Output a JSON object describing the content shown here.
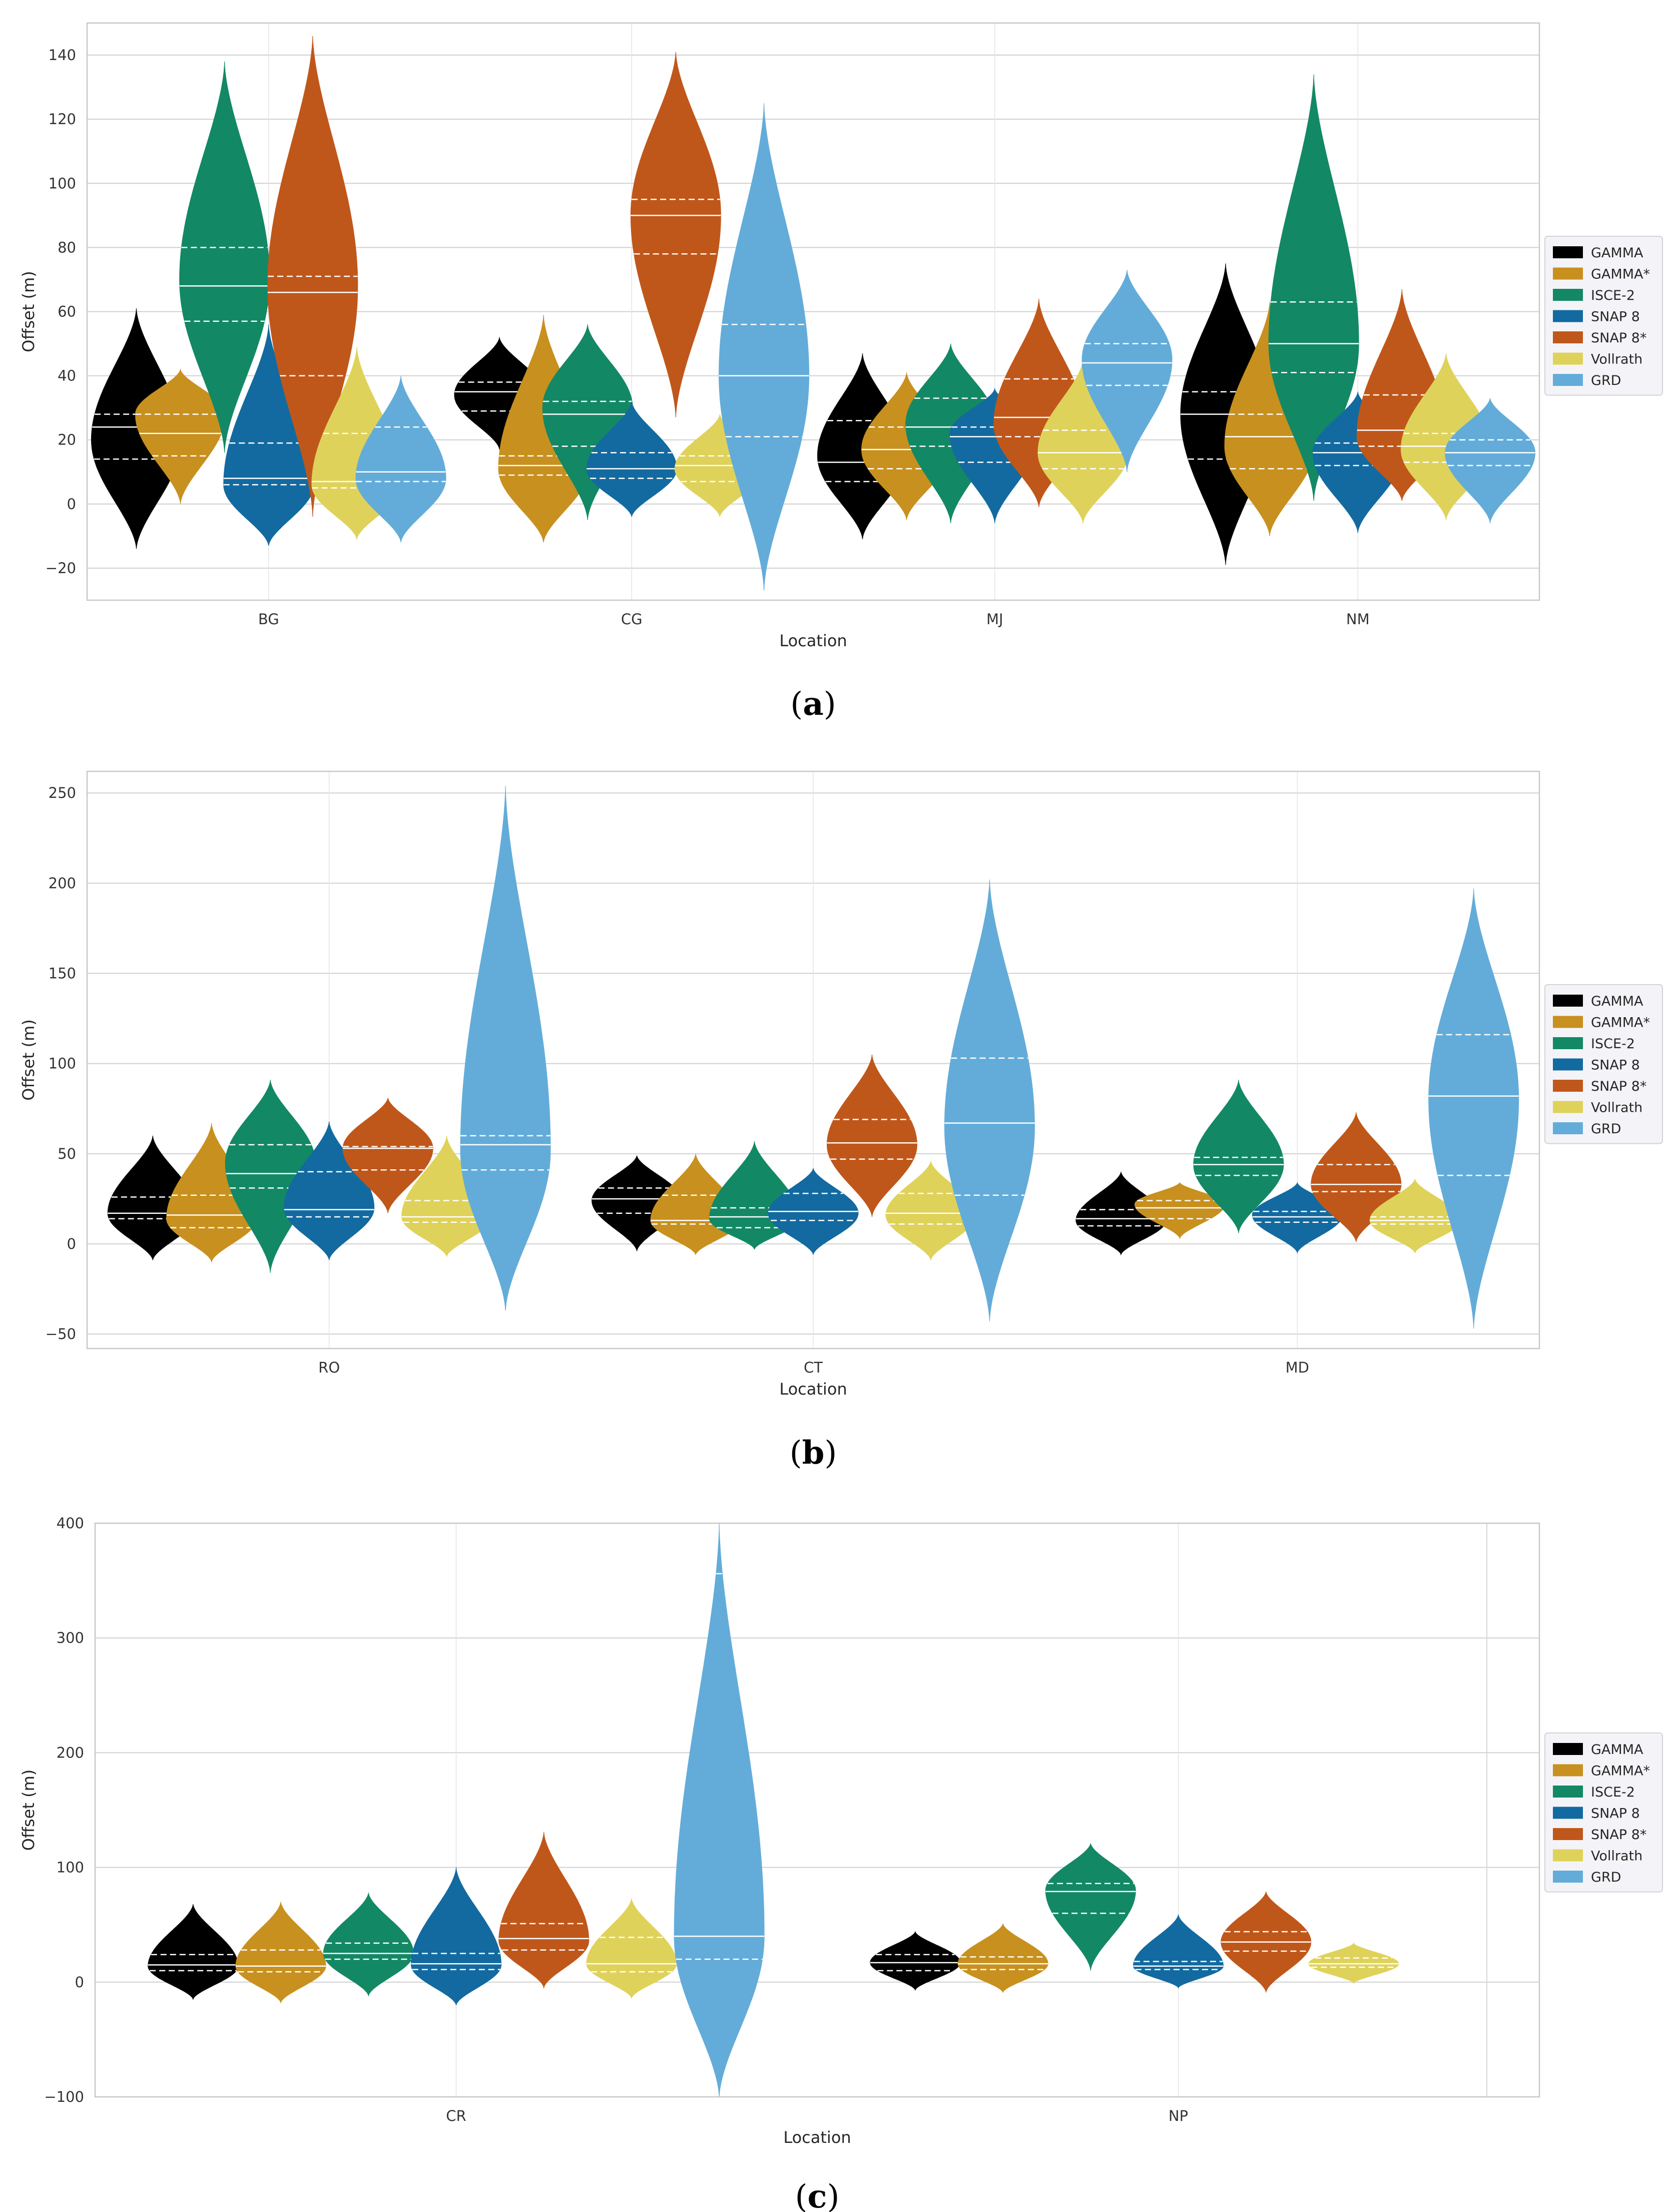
{
  "colors": {
    "GAMMA": "#000000",
    "GAMMA*": "#c8901e",
    "ISCE-2": "#138864",
    "SNAP 8": "#136aa0",
    "SNAP 8*": "#c0571a",
    "Vollrath": "#dfd25a",
    "GRD": "#63acd9"
  },
  "legend": {
    "placement": "right-center",
    "entries": [
      "GAMMA",
      "GAMMA*",
      "ISCE-2",
      "SNAP 8",
      "SNAP 8*",
      "Vollrath",
      "GRD"
    ]
  },
  "chart_data": [
    {
      "type": "violin",
      "caption": "(a)",
      "caption_letter": "a",
      "xlabel": "Location",
      "ylabel": "Offset (m)",
      "ylim": [
        -30,
        150
      ],
      "yticks": [
        -20,
        0,
        20,
        40,
        60,
        80,
        100,
        120,
        140
      ],
      "grid": true,
      "categories": [
        "BG",
        "CG",
        "MJ",
        "NM"
      ],
      "violins": [
        {
          "category": "BG",
          "series": "GAMMA",
          "min": -14,
          "max": 61,
          "q1": 14,
          "median": 24,
          "q3": 28,
          "mode": 20
        },
        {
          "category": "BG",
          "series": "GAMMA*",
          "min": 0,
          "max": 42,
          "q1": 15,
          "median": 22,
          "q3": 28,
          "mode": 28
        },
        {
          "category": "BG",
          "series": "ISCE-2",
          "min": 16,
          "max": 138,
          "q1": 57,
          "median": 68,
          "q3": 80,
          "mode": 70
        },
        {
          "category": "BG",
          "series": "SNAP 8",
          "min": -13,
          "max": 56,
          "q1": 6,
          "median": 8,
          "q3": 19,
          "mode": 6
        },
        {
          "category": "BG",
          "series": "SNAP 8*",
          "min": -4,
          "max": 146,
          "q1": 40,
          "median": 66,
          "q3": 71,
          "mode": 68
        },
        {
          "category": "BG",
          "series": "Vollrath",
          "min": -11,
          "max": 49,
          "q1": 5,
          "median": 7,
          "q3": 22,
          "mode": 6
        },
        {
          "category": "BG",
          "series": "GRD",
          "min": -12,
          "max": 40,
          "q1": 7,
          "median": 10,
          "q3": 24,
          "mode": 8
        },
        {
          "category": "CG",
          "series": "GAMMA",
          "min": 17,
          "max": 52,
          "q1": 29,
          "median": 35,
          "q3": 38,
          "mode": 34
        },
        {
          "category": "CG",
          "series": "GAMMA*",
          "min": -12,
          "max": 59,
          "q1": 9,
          "median": 12,
          "q3": 15,
          "mode": 11
        },
        {
          "category": "CG",
          "series": "ISCE-2",
          "min": -5,
          "max": 56,
          "q1": 18,
          "median": 28,
          "q3": 32,
          "mode": 30
        },
        {
          "category": "CG",
          "series": "SNAP 8",
          "min": -4,
          "max": 32,
          "q1": 8,
          "median": 11,
          "q3": 16,
          "mode": 11
        },
        {
          "category": "CG",
          "series": "SNAP 8*",
          "min": 27,
          "max": 141,
          "q1": 78,
          "median": 90,
          "q3": 95,
          "mode": 90
        },
        {
          "category": "CG",
          "series": "Vollrath",
          "min": -4,
          "max": 28,
          "q1": 7,
          "median": 12,
          "q3": 15,
          "mode": 11
        },
        {
          "category": "CG",
          "series": "GRD",
          "min": -27,
          "max": 125,
          "q1": 21,
          "median": 40,
          "q3": 56,
          "mode": 40
        },
        {
          "category": "MJ",
          "series": "GAMMA",
          "min": -11,
          "max": 47,
          "q1": 7,
          "median": 13,
          "q3": 26,
          "mode": 15
        },
        {
          "category": "MJ",
          "series": "GAMMA*",
          "min": -5,
          "max": 41,
          "q1": 11,
          "median": 17,
          "q3": 24,
          "mode": 17
        },
        {
          "category": "MJ",
          "series": "ISCE-2",
          "min": -6,
          "max": 50,
          "q1": 18,
          "median": 24,
          "q3": 33,
          "mode": 25
        },
        {
          "category": "MJ",
          "series": "SNAP 8",
          "min": -6,
          "max": 36,
          "q1": 13,
          "median": 21,
          "q3": 24,
          "mode": 22
        },
        {
          "category": "MJ",
          "series": "SNAP 8*",
          "min": -1,
          "max": 64,
          "q1": 21,
          "median": 27,
          "q3": 39,
          "mode": 25
        },
        {
          "category": "MJ",
          "series": "Vollrath",
          "min": -6,
          "max": 45,
          "q1": 11,
          "median": 16,
          "q3": 23,
          "mode": 16
        },
        {
          "category": "MJ",
          "series": "GRD",
          "min": 10,
          "max": 73,
          "q1": 37,
          "median": 44,
          "q3": 50,
          "mode": 45
        },
        {
          "category": "NM",
          "series": "GAMMA",
          "min": -19,
          "max": 75,
          "q1": 14,
          "median": 28,
          "q3": 35,
          "mode": 28
        },
        {
          "category": "NM",
          "series": "GAMMA*",
          "min": -10,
          "max": 63,
          "q1": 11,
          "median": 21,
          "q3": 28,
          "mode": 18
        },
        {
          "category": "NM",
          "series": "ISCE-2",
          "min": 1,
          "max": 134,
          "q1": 41,
          "median": 50,
          "q3": 63,
          "mode": 50
        },
        {
          "category": "NM",
          "series": "SNAP 8",
          "min": -9,
          "max": 35,
          "q1": 12,
          "median": 16,
          "q3": 19,
          "mode": 16
        },
        {
          "category": "NM",
          "series": "SNAP 8*",
          "min": 1,
          "max": 67,
          "q1": 18,
          "median": 23,
          "q3": 34,
          "mode": 21
        },
        {
          "category": "NM",
          "series": "Vollrath",
          "min": -5,
          "max": 47,
          "q1": 13,
          "median": 18,
          "q3": 22,
          "mode": 17
        },
        {
          "category": "NM",
          "series": "GRD",
          "min": -6,
          "max": 33,
          "q1": 12,
          "median": 16,
          "q3": 20,
          "mode": 16
        }
      ]
    },
    {
      "type": "violin",
      "caption": "(b)",
      "caption_letter": "b",
      "xlabel": "Location",
      "ylabel": "Offset (m)",
      "ylim": [
        -58,
        262
      ],
      "yticks": [
        -50,
        0,
        50,
        100,
        150,
        200,
        250
      ],
      "grid": true,
      "categories": [
        "RO",
        "CT",
        "MD"
      ],
      "violins": [
        {
          "category": "RO",
          "series": "GAMMA",
          "min": -9,
          "max": 60,
          "q1": 14,
          "median": 17,
          "q3": 26,
          "mode": 17
        },
        {
          "category": "RO",
          "series": "GAMMA*",
          "min": -10,
          "max": 67,
          "q1": 9,
          "median": 16,
          "q3": 27,
          "mode": 14
        },
        {
          "category": "RO",
          "series": "ISCE-2",
          "min": -16,
          "max": 91,
          "q1": 31,
          "median": 39,
          "q3": 55,
          "mode": 45
        },
        {
          "category": "RO",
          "series": "SNAP 8",
          "min": -9,
          "max": 68,
          "q1": 15,
          "median": 19,
          "q3": 40,
          "mode": 20
        },
        {
          "category": "RO",
          "series": "SNAP 8*",
          "min": 17,
          "max": 81,
          "q1": 41,
          "median": 53,
          "q3": 54,
          "mode": 53
        },
        {
          "category": "RO",
          "series": "Vollrath",
          "min": -7,
          "max": 60,
          "q1": 12,
          "median": 15,
          "q3": 24,
          "mode": 15
        },
        {
          "category": "RO",
          "series": "GRD",
          "min": -37,
          "max": 254,
          "q1": 41,
          "median": 55,
          "q3": 60,
          "mode": 52
        },
        {
          "category": "CT",
          "series": "GAMMA",
          "min": -4,
          "max": 49,
          "q1": 17,
          "median": 25,
          "q3": 31,
          "mode": 24
        },
        {
          "category": "CT",
          "series": "GAMMA*",
          "min": -6,
          "max": 50,
          "q1": 11,
          "median": 13,
          "q3": 27,
          "mode": 13
        },
        {
          "category": "CT",
          "series": "ISCE-2",
          "min": -3,
          "max": 57,
          "q1": 9,
          "median": 15,
          "q3": 20,
          "mode": 14
        },
        {
          "category": "CT",
          "series": "SNAP 8",
          "min": -6,
          "max": 42,
          "q1": 13,
          "median": 18,
          "q3": 28,
          "mode": 17
        },
        {
          "category": "CT",
          "series": "SNAP 8*",
          "min": 15,
          "max": 105,
          "q1": 47,
          "median": 56,
          "q3": 69,
          "mode": 55
        },
        {
          "category": "CT",
          "series": "Vollrath",
          "min": -9,
          "max": 46,
          "q1": 11,
          "median": 17,
          "q3": 28,
          "mode": 16
        },
        {
          "category": "CT",
          "series": "GRD",
          "min": -43,
          "max": 202,
          "q1": 27,
          "median": 67,
          "q3": 103,
          "mode": 65
        },
        {
          "category": "MD",
          "series": "GAMMA",
          "min": -6,
          "max": 40,
          "q1": 10,
          "median": 14,
          "q3": 19,
          "mode": 13
        },
        {
          "category": "MD",
          "series": "GAMMA*",
          "min": 3,
          "max": 34,
          "q1": 14,
          "median": 20,
          "q3": 24,
          "mode": 22
        },
        {
          "category": "MD",
          "series": "ISCE-2",
          "min": 6,
          "max": 91,
          "q1": 38,
          "median": 44,
          "q3": 48,
          "mode": 44
        },
        {
          "category": "MD",
          "series": "SNAP 8",
          "min": -5,
          "max": 34,
          "q1": 12,
          "median": 15,
          "q3": 18,
          "mode": 16
        },
        {
          "category": "MD",
          "series": "SNAP 8*",
          "min": 1,
          "max": 73,
          "q1": 29,
          "median": 33,
          "q3": 44,
          "mode": 33
        },
        {
          "category": "MD",
          "series": "Vollrath",
          "min": -5,
          "max": 36,
          "q1": 11,
          "median": 13,
          "q3": 15,
          "mode": 13
        },
        {
          "category": "MD",
          "series": "GRD",
          "min": -47,
          "max": 197,
          "q1": 38,
          "median": 82,
          "q3": 116,
          "mode": 80
        }
      ]
    },
    {
      "type": "violin",
      "caption": "(c)",
      "caption_letter": "c",
      "xlabel": "Location",
      "ylabel": "Offset (m)",
      "ylim": [
        -100,
        400
      ],
      "yticks": [
        -100,
        0,
        100,
        200,
        300,
        400
      ],
      "grid": true,
      "categories": [
        "CR",
        "NP"
      ],
      "violins": [
        {
          "category": "CR",
          "series": "GAMMA",
          "min": -15,
          "max": 68,
          "q1": 10,
          "median": 15,
          "q3": 24,
          "mode": 14
        },
        {
          "category": "CR",
          "series": "GAMMA*",
          "min": -18,
          "max": 70,
          "q1": 9,
          "median": 14,
          "q3": 28,
          "mode": 14
        },
        {
          "category": "CR",
          "series": "ISCE-2",
          "min": -12,
          "max": 78,
          "q1": 20,
          "median": 25,
          "q3": 34,
          "mode": 25
        },
        {
          "category": "CR",
          "series": "SNAP 8",
          "min": -20,
          "max": 100,
          "q1": 11,
          "median": 16,
          "q3": 25,
          "mode": 15
        },
        {
          "category": "CR",
          "series": "SNAP 8*",
          "min": -5,
          "max": 131,
          "q1": 28,
          "median": 38,
          "q3": 51,
          "mode": 36
        },
        {
          "category": "CR",
          "series": "Vollrath",
          "min": -14,
          "max": 73,
          "q1": 9,
          "median": 16,
          "q3": 39,
          "mode": 16
        },
        {
          "category": "CR",
          "series": "GRD",
          "min": -100,
          "max": 400,
          "q1": 20,
          "median": 40,
          "q3": 356,
          "mode": 40
        },
        {
          "category": "NP",
          "series": "GAMMA",
          "min": -7,
          "max": 44,
          "q1": 10,
          "median": 17,
          "q3": 24,
          "mode": 17
        },
        {
          "category": "NP",
          "series": "GAMMA*",
          "min": -9,
          "max": 51,
          "q1": 11,
          "median": 16,
          "q3": 22,
          "mode": 16
        },
        {
          "category": "NP",
          "series": "ISCE-2",
          "min": 10,
          "max": 121,
          "q1": 60,
          "median": 79,
          "q3": 86,
          "mode": 80
        },
        {
          "category": "NP",
          "series": "SNAP 8",
          "min": -5,
          "max": 59,
          "q1": 11,
          "median": 14,
          "q3": 18,
          "mode": 14
        },
        {
          "category": "NP",
          "series": "SNAP 8*",
          "min": -9,
          "max": 79,
          "q1": 27,
          "median": 35,
          "q3": 44,
          "mode": 35
        },
        {
          "category": "NP",
          "series": "Vollrath",
          "min": -1,
          "max": 34,
          "q1": 13,
          "median": 16,
          "q3": 21,
          "mode": 16
        }
      ]
    }
  ]
}
